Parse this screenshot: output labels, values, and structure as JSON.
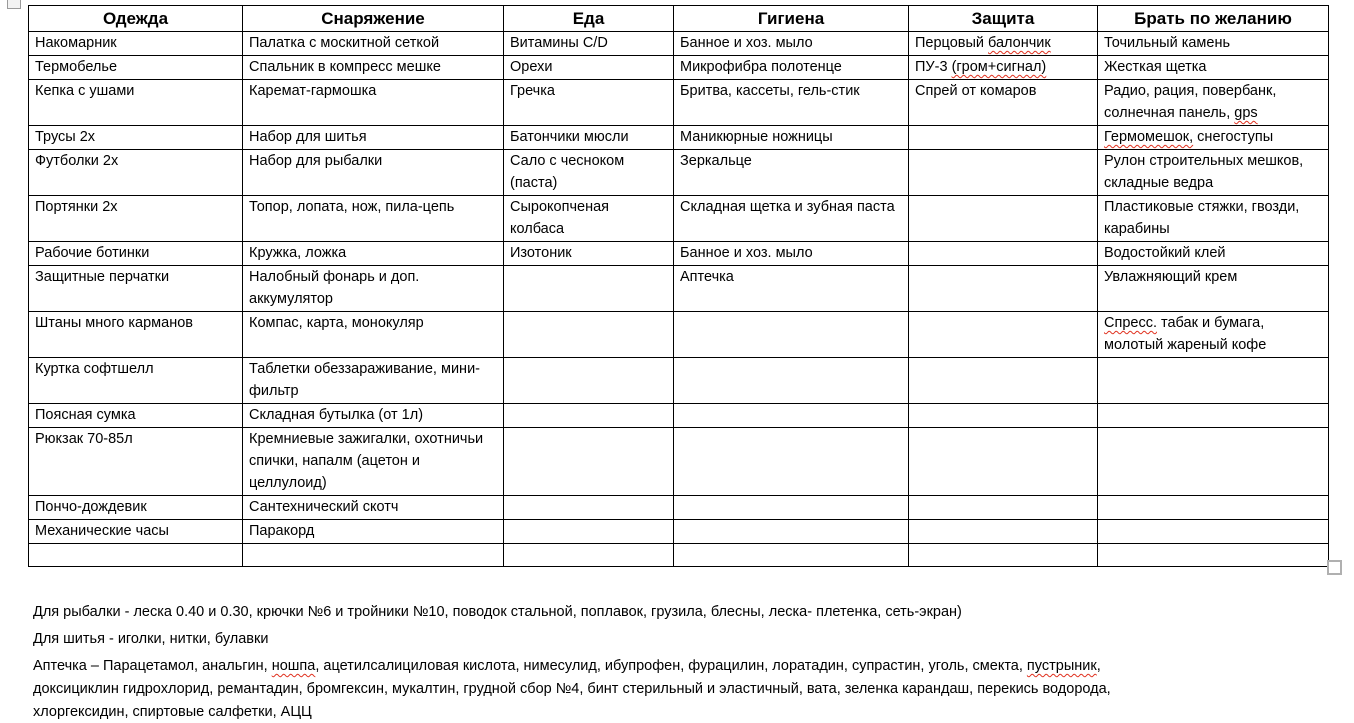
{
  "document": {
    "background": "#ffffff",
    "text_color": "#000000",
    "table_border_color": "#000000",
    "spellcheck_underline_color": "#e0301e"
  },
  "icons": {
    "table_move_handle": "square-handle",
    "table_resize_handle": "square-handle"
  },
  "table": {
    "column_keys": [
      "clothing",
      "gear",
      "food",
      "hygiene",
      "protection",
      "optional"
    ],
    "headers": [
      "Одежда",
      "Снаряжение",
      "Еда",
      "Гигиена",
      "Защита",
      "Брать по желанию"
    ],
    "rows": [
      [
        [
          {
            "t": "Накомарник"
          }
        ],
        [
          {
            "t": "Палатка с москитной сеткой"
          }
        ],
        [
          {
            "t": "Витамины C/D"
          }
        ],
        [
          {
            "t": "Банное и хоз. мыло"
          }
        ],
        [
          {
            "t": "Перцовый "
          },
          {
            "t": "балончик",
            "sp": true
          }
        ],
        [
          {
            "t": "Точильный камень"
          }
        ]
      ],
      [
        [
          {
            "t": "Термобелье"
          }
        ],
        [
          {
            "t": "Спальник в компресс мешке"
          }
        ],
        [
          {
            "t": "Орехи"
          }
        ],
        [
          {
            "t": "Микрофибра полотенце"
          }
        ],
        [
          {
            "t": "ПУ-3 "
          },
          {
            "t": "(гром+сигнал)",
            "sp": true
          }
        ],
        [
          {
            "t": "Жесткая щетка"
          }
        ]
      ],
      [
        [
          {
            "t": "Кепка с ушами"
          }
        ],
        [
          {
            "t": "Каремат-гармошка"
          }
        ],
        [
          {
            "t": "Гречка"
          }
        ],
        [
          {
            "t": "Бритва, кассеты, гель-стик"
          }
        ],
        [
          {
            "t": "Спрей от комаров"
          }
        ],
        [
          {
            "t": "Радио, рация, повербанк, солнечная панель, "
          },
          {
            "t": "gps",
            "sp": true
          }
        ]
      ],
      [
        [
          {
            "t": "Трусы 2х"
          }
        ],
        [
          {
            "t": "Набор для шитья"
          }
        ],
        [
          {
            "t": "Батончики мюсли"
          }
        ],
        [
          {
            "t": "Маникюрные ножницы"
          }
        ],
        [],
        [
          {
            "t": "Гермомешок,",
            "sp": true
          },
          {
            "t": " снегоступы"
          }
        ]
      ],
      [
        [
          {
            "t": "Футболки 2х"
          }
        ],
        [
          {
            "t": "Набор для рыбалки"
          }
        ],
        [
          {
            "t": "Сало с чесноком (паста)"
          }
        ],
        [
          {
            "t": "Зеркальце"
          }
        ],
        [],
        [
          {
            "t": "Рулон строительных мешков, складные ведра"
          }
        ]
      ],
      [
        [
          {
            "t": "Портянки 2х"
          }
        ],
        [
          {
            "t": "Топор, лопата, нож, пила-цепь"
          }
        ],
        [
          {
            "t": "Сырокопченая колбаса"
          }
        ],
        [
          {
            "t": "Складная щетка и зубная паста"
          }
        ],
        [],
        [
          {
            "t": "Пластиковые стяжки, гвозди, карабины"
          }
        ]
      ],
      [
        [
          {
            "t": "Рабочие ботинки"
          }
        ],
        [
          {
            "t": "Кружка, ложка"
          }
        ],
        [
          {
            "t": "Изотоник"
          }
        ],
        [
          {
            "t": "Банное и хоз. мыло"
          }
        ],
        [],
        [
          {
            "t": "Водостойкий клей"
          }
        ]
      ],
      [
        [
          {
            "t": "Защитные перчатки"
          }
        ],
        [
          {
            "t": "Налобный фонарь и доп. аккумулятор"
          }
        ],
        [],
        [
          {
            "t": "Аптечка"
          }
        ],
        [],
        [
          {
            "t": "Увлажняющий крем"
          }
        ]
      ],
      [
        [
          {
            "t": "Штаны много карманов"
          }
        ],
        [
          {
            "t": "Компас, карта, монокуляр"
          }
        ],
        [],
        [],
        [],
        [
          {
            "t": "Спресс.",
            "sp": true
          },
          {
            "t": " табак и бумага, молотый жареный кофе"
          }
        ]
      ],
      [
        [
          {
            "t": "Куртка софтшелл"
          }
        ],
        [
          {
            "t": "Таблетки обеззараживание, мини-фильтр"
          }
        ],
        [],
        [],
        [],
        []
      ],
      [
        [
          {
            "t": "Поясная сумка"
          }
        ],
        [
          {
            "t": "Складная бутылка (от 1л)"
          }
        ],
        [],
        [],
        [],
        []
      ],
      [
        [
          {
            "t": "Рюкзак 70-85л"
          }
        ],
        [
          {
            "t": "Кремниевые зажигалки, охотничьи спички, напалм (ацетон и целлулоид)"
          }
        ],
        [],
        [],
        [],
        []
      ],
      [
        [
          {
            "t": "Пончо-дождевик"
          }
        ],
        [
          {
            "t": "Сантехнический скотч"
          }
        ],
        [],
        [],
        [],
        []
      ],
      [
        [
          {
            "t": "Механические часы"
          }
        ],
        [
          {
            "t": "Паракорд"
          }
        ],
        [],
        [],
        [],
        []
      ],
      [
        [],
        [],
        [],
        [],
        [],
        []
      ]
    ]
  },
  "notes": {
    "paragraphs": [
      {
        "key": "fishing",
        "segments": [
          {
            "t": "Для рыбалки - леска 0.40 и 0.30, крючки №6 и тройники №10, поводок стальной, поплавок, грузила, блесны, леска- плетенка, сеть-экран)"
          }
        ]
      },
      {
        "key": "sewing",
        "segments": [
          {
            "t": "Для шитья - иголки, нитки, булавки"
          }
        ]
      },
      {
        "key": "firstaid",
        "segments": [
          {
            "t": "Аптечка – Парацетамол, анальгин, "
          },
          {
            "t": "ношпа",
            "sp": true
          },
          {
            "t": ", ацетилсалициловая кислота, нимесулид, ибупрофен, фурацилин, лоратадин, супрастин, уголь, смекта, "
          },
          {
            "t": "пустрыник",
            "sp": true
          },
          {
            "t": ", доксициклин гидрохлорид, ремантадин, бромгексин, мукалтин, грудной сбор №4, бинт стерильный и эластичный, вата, зеленка карандаш, перекись водорода, хлоргексидин, спиртовые салфетки, АЦЦ"
          }
        ]
      }
    ]
  }
}
